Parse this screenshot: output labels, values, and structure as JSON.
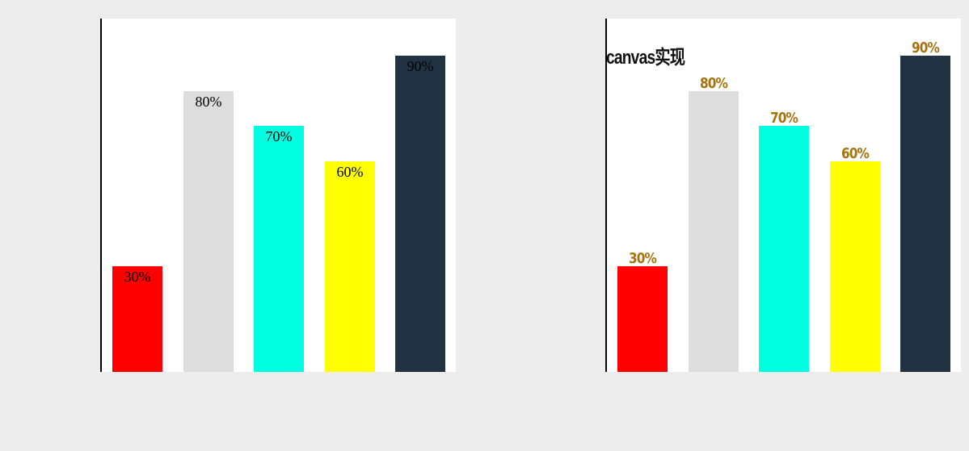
{
  "chart_data": [
    {
      "type": "bar",
      "categories": [
        "",
        "",
        "",
        "",
        ""
      ],
      "values": [
        30,
        80,
        70,
        60,
        90
      ],
      "labels": [
        "30%",
        "80%",
        "70%",
        "60%",
        "90%"
      ],
      "colors": [
        "#ff0000",
        "#dddddd",
        "#00ffe0",
        "#ffff00",
        "#213242"
      ],
      "ylim": [
        0,
        100
      ],
      "title": "",
      "xlabel": "",
      "ylabel": "",
      "grid": false,
      "label_position": "inside-top"
    },
    {
      "type": "bar",
      "categories": [
        "",
        "",
        "",
        "",
        ""
      ],
      "values": [
        30,
        80,
        70,
        60,
        90
      ],
      "labels": [
        "30%",
        "80%",
        "70%",
        "60%",
        "90%"
      ],
      "colors": [
        "#ff0000",
        "#dddddd",
        "#00ffe0",
        "#ffff00",
        "#213242"
      ],
      "label_color": "#a8720d",
      "ylim": [
        0,
        100
      ],
      "title": "canvas实现",
      "xlabel": "",
      "ylabel": "",
      "grid": false,
      "label_position": "above"
    }
  ]
}
